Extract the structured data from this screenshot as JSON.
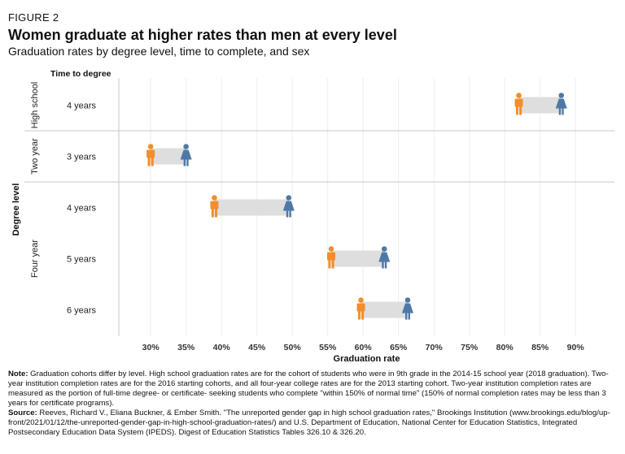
{
  "figure_label": "FIGURE 2",
  "title": "Women graduate at higher rates than men at every level",
  "subtitle": "Graduation rates by degree level, time to complete, and sex",
  "chart_data": {
    "type": "dumbbell",
    "y_header": "Time to degree",
    "y_group_title": "Degree level",
    "xlabel": "Graduation rate",
    "xlim": [
      0.255,
      0.955
    ],
    "xticks": [
      {
        "value": 0.3,
        "label": "30%"
      },
      {
        "value": 0.35,
        "label": "35%"
      },
      {
        "value": 0.4,
        "label": "40%"
      },
      {
        "value": 0.45,
        "label": "45%"
      },
      {
        "value": 0.5,
        "label": "50%"
      },
      {
        "value": 0.55,
        "label": "55%"
      },
      {
        "value": 0.6,
        "label": "60%"
      },
      {
        "value": 0.65,
        "label": "65%"
      },
      {
        "value": 0.7,
        "label": "70%"
      },
      {
        "value": 0.75,
        "label": "75%"
      },
      {
        "value": 0.8,
        "label": "80%"
      },
      {
        "value": 0.85,
        "label": "85%"
      },
      {
        "value": 0.9,
        "label": "90%"
      }
    ],
    "groups": [
      {
        "name": "High school",
        "rows": [
          {
            "label": "4 years",
            "men": 0.82,
            "women": 0.88
          }
        ]
      },
      {
        "name": "Two year",
        "rows": [
          {
            "label": "3 years",
            "men": 0.3,
            "women": 0.35
          }
        ]
      },
      {
        "name": "Four year",
        "rows": [
          {
            "label": "4 years",
            "men": 0.39,
            "women": 0.495
          },
          {
            "label": "5 years",
            "men": 0.555,
            "women": 0.63
          },
          {
            "label": "6 years",
            "men": 0.597,
            "women": 0.663
          }
        ]
      }
    ],
    "colors": {
      "men": "#F28E2B",
      "women": "#4E79A7",
      "bar": "#DEDEDE",
      "grid": "#EDEDED",
      "divider": "#C8C8C8"
    }
  },
  "notes": {
    "note_label": "Note:",
    "note_text": " Graduation cohorts differ by level. High school graduation rates are for the cohort of students who were in 9th grade in the 2014-15 school year (2018 graduation). Two-year institution completion rates are for the 2016 starting cohorts, and all four-year college rates are for the 2013 starting cohort. Two-year institution completion rates are measured as the portion of full-time degree- or certificate- seeking students who complete \"within 150% of normal time\" (150% of normal completion rates may be less than 3 years for certificate programs).",
    "source_label": "Source:",
    "source_text": " Reeves, Richard V., Eliana Buckner, & Ember Smith. \"The unreported gender gap in high school graduation rates,\" Brookings Institution (www.brookings.edu/blog/up-front/2021/01/12/the-unreported-gender-gap-in-high-school-graduation-rates/) and U.S. Department of Education, National Center for Education Statistics, Integrated Postsecondary Education Data System (IPEDS). Digest of Education Statistics Tables 326.10 & 326.20."
  }
}
